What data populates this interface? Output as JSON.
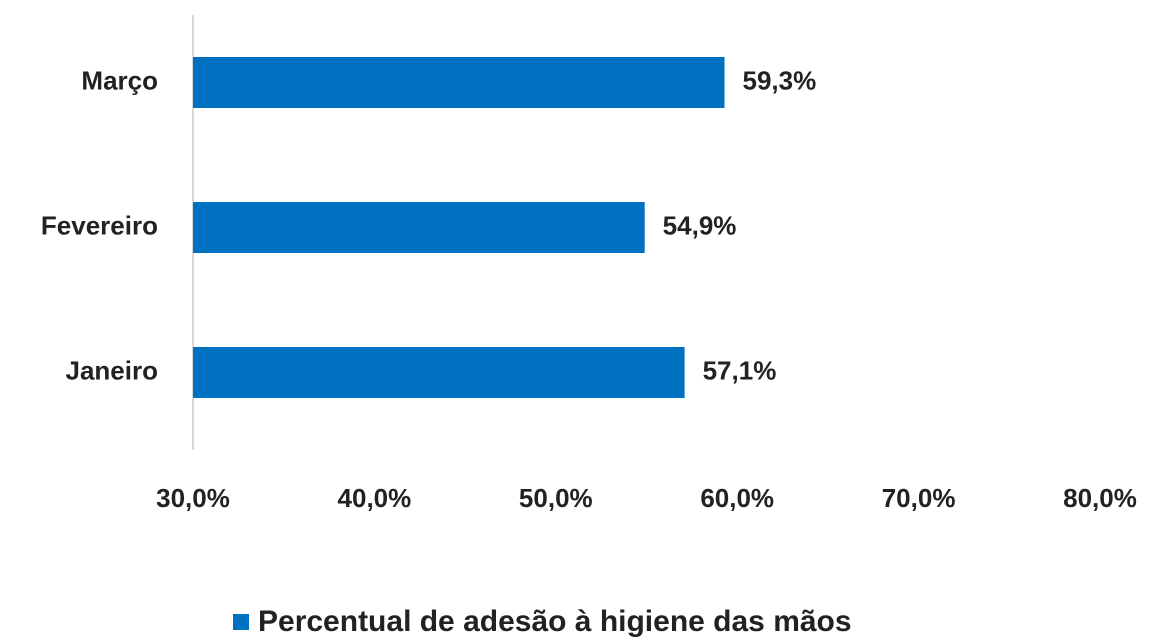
{
  "chart_data": {
    "type": "hbar",
    "categories": [
      "Janeiro",
      "Fevereiro",
      "Março"
    ],
    "series": [
      {
        "name": "Percentual de adesão à higiene das mãos",
        "color": "#0070c0",
        "values": [
          57.1,
          54.9,
          59.3
        ],
        "value_labels": [
          "57,1%",
          "54,9%",
          "59,3%"
        ]
      }
    ],
    "xlim": [
      30,
      80
    ],
    "xticks": [
      {
        "value": 30,
        "label": "30,0%"
      },
      {
        "value": 40,
        "label": "40,0%"
      },
      {
        "value": 50,
        "label": "50,0%"
      },
      {
        "value": 60,
        "label": "60,0%"
      },
      {
        "value": 70,
        "label": "70,0%"
      },
      {
        "value": 80,
        "label": "80,0%"
      }
    ],
    "legend": "bottom"
  }
}
